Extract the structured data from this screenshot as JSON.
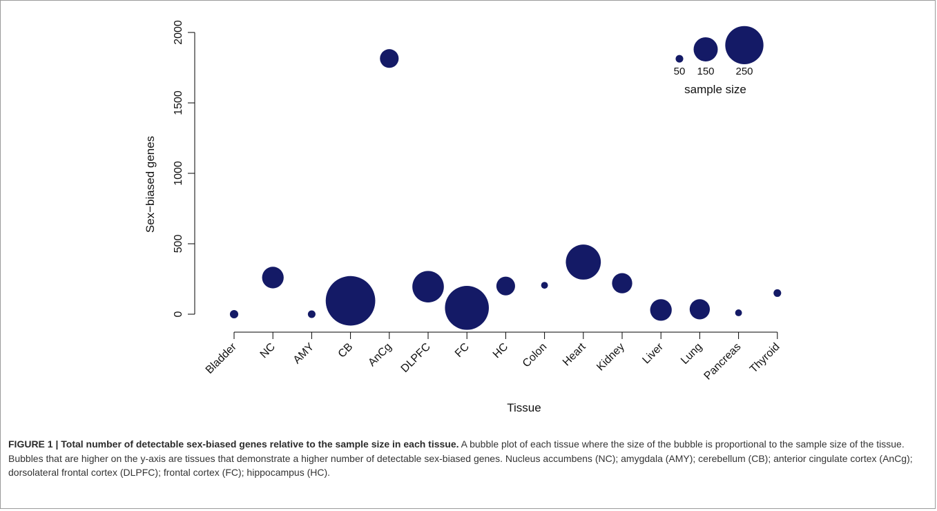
{
  "colors": {
    "bubble": "#141a66",
    "axis": "#000000",
    "frame": "#9a9a9a"
  },
  "chart_data": {
    "type": "scatter",
    "xlabel": "Tissue",
    "ylabel": "Sex−biased genes",
    "ylim": [
      0,
      2000
    ],
    "yticks": [
      "0",
      "500",
      "1000",
      "1500",
      "2000"
    ],
    "categories": [
      "Bladder",
      "NC",
      "AMY",
      "CB",
      "AnCg",
      "DLPFC",
      "FC",
      "HC",
      "Colon",
      "Heart",
      "Kidney",
      "Liver",
      "Lung",
      "Pancreas",
      "Thyroid"
    ],
    "values": [
      0,
      260,
      0,
      95,
      1815,
      195,
      45,
      200,
      205,
      370,
      220,
      30,
      35,
      10,
      150
    ],
    "sample_sizes": [
      12,
      80,
      10,
      420,
      60,
      170,
      330,
      60,
      8,
      210,
      70,
      80,
      70,
      8,
      10
    ],
    "legend": {
      "title": "sample size",
      "labels": [
        "50",
        "150",
        "250"
      ],
      "sizes": [
        10,
        100,
        250
      ],
      "position": "top-right"
    },
    "grid": false
  },
  "caption": {
    "title": "FIGURE 1 | Total number of detectable sex-biased genes relative to the sample size in each tissue.",
    "body": " A bubble plot of each tissue where the size of the bubble is proportional to the sample size of the tissue. Bubbles that are higher on the y-axis are tissues that demonstrate a higher number of detectable sex-biased genes. Nucleus accumbens (NC); amygdala (AMY); cerebellum (CB); anterior cingulate cortex (AnCg); dorsolateral frontal cortex (DLPFC); frontal cortex (FC); hippocampus (HC)."
  }
}
